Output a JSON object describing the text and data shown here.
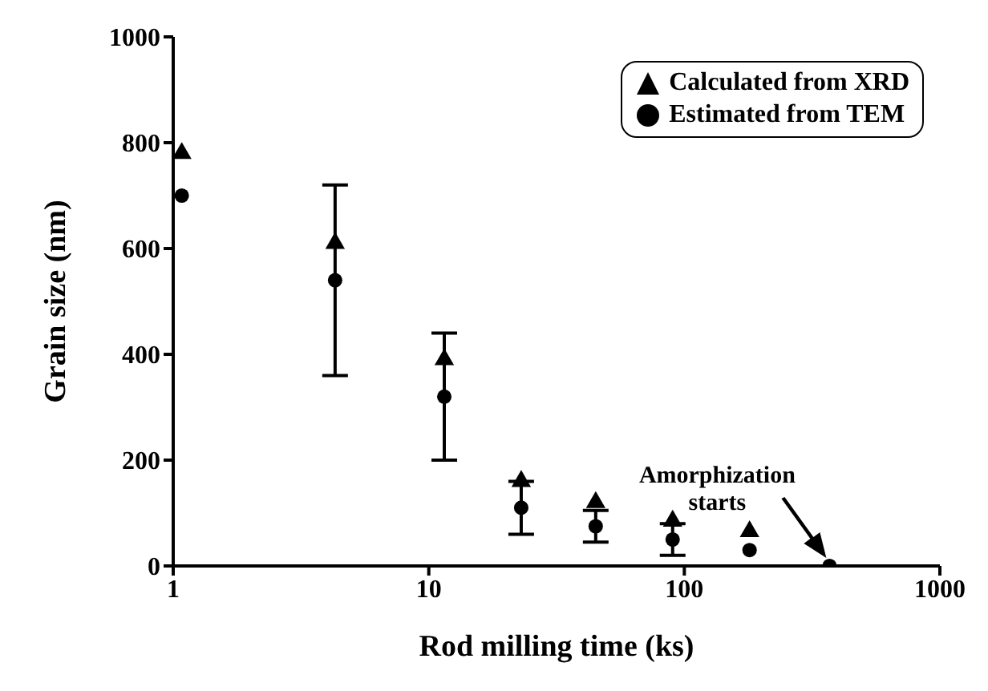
{
  "chart_data": {
    "type": "scatter",
    "xlabel": "Rod milling time (ks)",
    "ylabel": "Grain size  (nm)",
    "log": "x",
    "xlim": [
      1,
      1000
    ],
    "xticks": [
      1,
      10,
      100,
      1000
    ],
    "ylim": [
      0,
      1000
    ],
    "yticks": [
      0,
      200,
      400,
      600,
      800,
      1000
    ],
    "grid": false,
    "legend": "top right",
    "series": [
      {
        "name": "Calculated from XRD",
        "color": "#000000",
        "marker": "triangle",
        "x": [
          1.08,
          4.3,
          11.5,
          23,
          45,
          90,
          180
        ],
        "values": [
          780,
          610,
          390,
          160,
          120,
          85,
          65
        ]
      },
      {
        "name": "Estimated from TEM",
        "color": "#000000",
        "marker": "circle",
        "x": [
          1.08,
          4.3,
          11.5,
          23,
          45,
          90,
          180,
          370
        ],
        "values": [
          700,
          540,
          320,
          110,
          75,
          50,
          30,
          0
        ],
        "errors": [
          null,
          180,
          120,
          50,
          30,
          30,
          null,
          null
        ]
      }
    ],
    "annotations": [
      {
        "text": "Amorphization starts",
        "x": 370,
        "y": 0
      }
    ]
  }
}
